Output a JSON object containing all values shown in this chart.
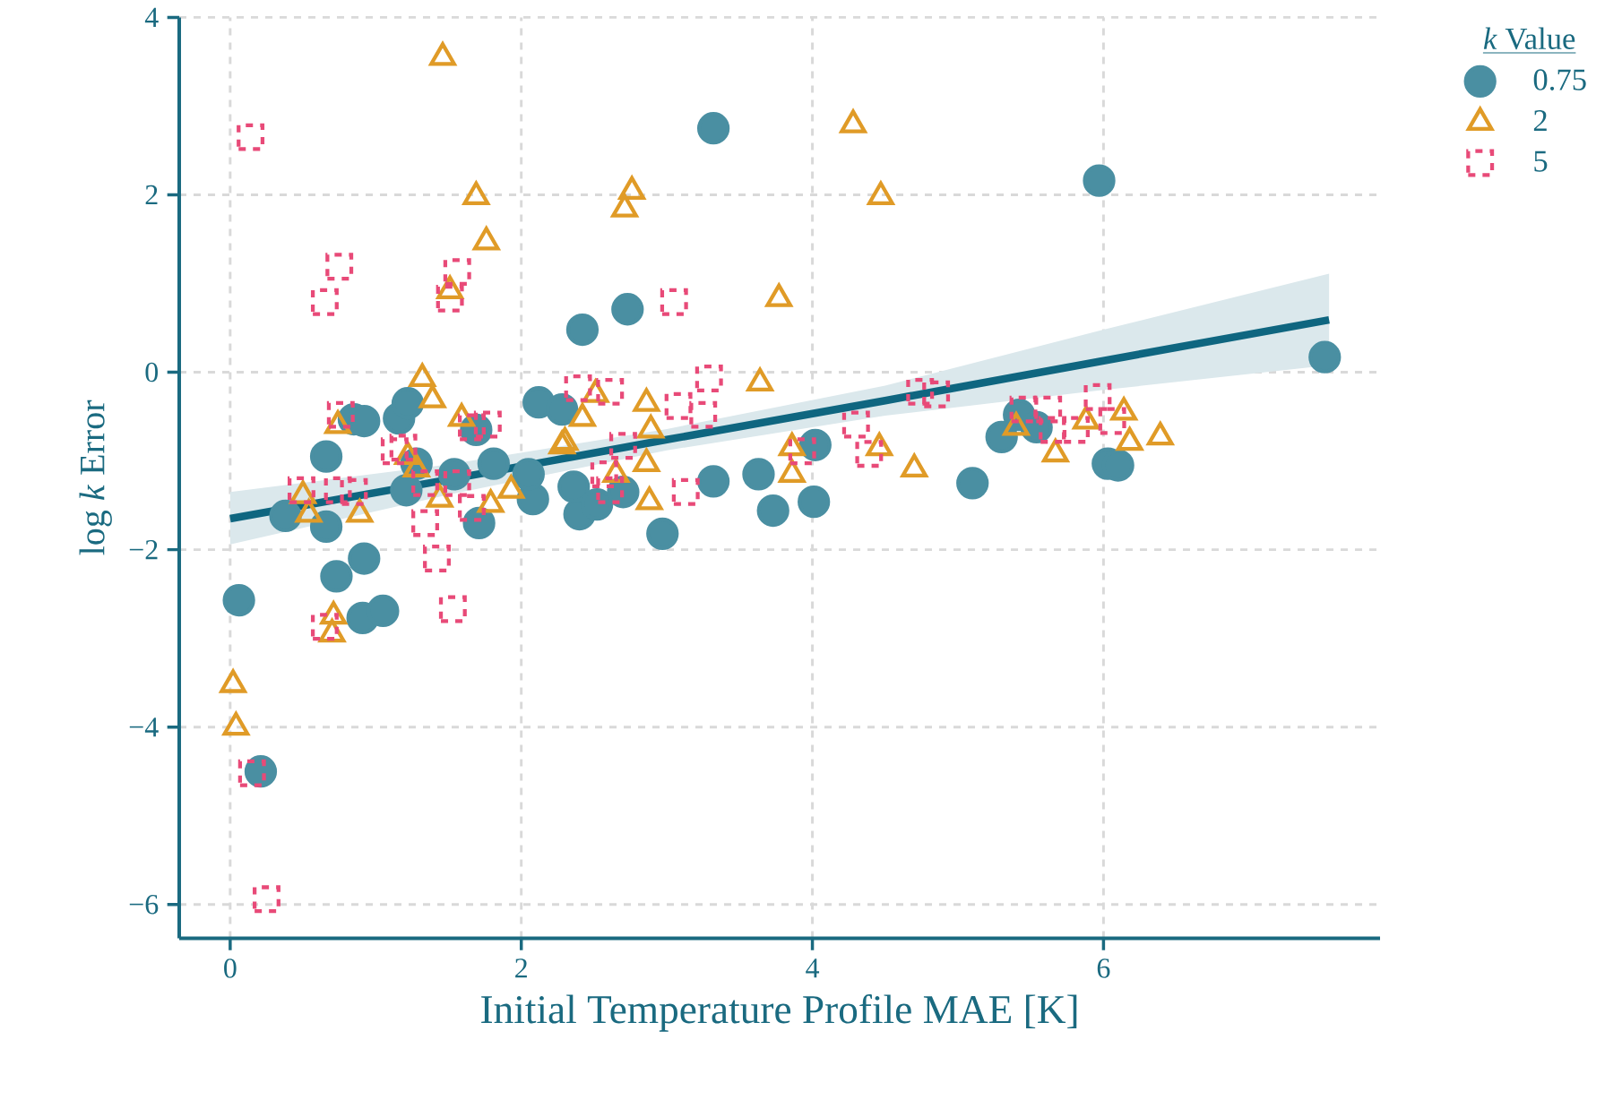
{
  "chart_data": {
    "type": "scatter",
    "xlabel": "Initial Temperature Profile MAE [K]",
    "ylabel": "log *k* Error",
    "legend_title": "*k* Value",
    "xlim": [
      -0.35,
      7.9
    ],
    "ylim": [
      -6.38,
      4
    ],
    "xticks": [
      0,
      2,
      4,
      6
    ],
    "yticks": [
      {
        "value": -6,
        "label": "−6"
      },
      {
        "value": -4,
        "label": "−4"
      },
      {
        "value": -2,
        "label": "−2"
      },
      0,
      2,
      4
    ],
    "grid": true,
    "legend": "right",
    "series": [
      {
        "name": "0.75",
        "marker": "circle",
        "color": "#4a8fa2",
        "x": [
          0.06,
          0.21,
          0.38,
          0.66,
          0.66,
          0.73,
          0.92,
          0.91,
          1.05,
          0.85,
          0.92,
          1.16,
          1.22,
          1.21,
          1.28,
          1.54,
          1.81,
          2.08,
          1.71,
          2.12,
          2.28,
          2.4,
          2.36,
          2.52,
          2.7,
          2.42,
          2.73,
          3.32,
          2.97,
          3.32,
          3.63,
          3.73,
          4.01,
          4.02,
          5.1,
          5.97,
          7.52,
          5.42,
          5.3,
          5.54,
          6.03,
          6.1,
          1.69,
          2.05
        ],
        "values": [
          -2.57,
          -4.5,
          -1.62,
          -1.74,
          -0.95,
          -2.3,
          -2.1,
          -2.77,
          -2.69,
          -0.53,
          -0.55,
          -0.52,
          -0.35,
          -1.33,
          -1.03,
          -1.15,
          -1.03,
          -1.43,
          -1.7,
          -0.34,
          -0.42,
          -1.6,
          -1.29,
          -1.49,
          -1.35,
          0.48,
          0.71,
          2.75,
          -1.82,
          -1.23,
          -1.15,
          -1.56,
          -1.46,
          -0.82,
          -1.25,
          2.16,
          0.17,
          -0.48,
          -0.73,
          -0.62,
          -1.03,
          -1.05,
          -0.65,
          -1.15
        ]
      },
      {
        "name": "2",
        "marker": "triangle",
        "color": "#e09b27",
        "x": [
          1.46,
          1.69,
          1.76,
          1.51,
          1.32,
          1.39,
          0.74,
          0.02,
          0.04,
          0.71,
          0.7,
          0.5,
          0.54,
          0.89,
          1.59,
          1.22,
          1.28,
          1.44,
          1.79,
          1.93,
          2.3,
          2.76,
          2.71,
          4.28,
          4.47,
          3.77,
          3.64,
          2.51,
          2.42,
          2.28,
          2.86,
          2.89,
          2.86,
          2.88,
          2.65,
          3.86,
          3.86,
          4.46,
          4.7,
          5.4,
          5.67,
          5.88,
          6.14,
          6.18,
          6.39
        ],
        "values": [
          3.55,
          1.98,
          1.47,
          0.92,
          -0.07,
          -0.31,
          -0.6,
          -3.52,
          -4.0,
          -2.75,
          -2.95,
          -1.39,
          -1.6,
          -1.6,
          -0.52,
          -0.95,
          -1.09,
          -1.43,
          -1.49,
          -1.33,
          -0.79,
          2.04,
          1.84,
          2.79,
          1.98,
          0.83,
          -0.12,
          -0.25,
          -0.52,
          -0.83,
          -0.35,
          -0.65,
          -1.03,
          -1.46,
          -1.15,
          -0.85,
          -1.15,
          -0.85,
          -1.09,
          -0.62,
          -0.92,
          -0.55,
          -0.45,
          -0.79,
          -0.73
        ]
      },
      {
        "name": "5",
        "marker": "square",
        "line_style": "dashed",
        "color": "#e84a78",
        "x": [
          0.14,
          0.75,
          0.65,
          1.56,
          1.51,
          0.76,
          0.25,
          0.15,
          0.65,
          1.53,
          1.42,
          1.34,
          1.19,
          1.13,
          0.49,
          0.74,
          0.85,
          1.34,
          1.56,
          1.66,
          1.77,
          1.66,
          2.39,
          3.05,
          2.61,
          3.29,
          3.08,
          3.25,
          2.7,
          2.57,
          2.61,
          3.13,
          3.93,
          4.3,
          4.39,
          4.74,
          4.85,
          5.45,
          5.62,
          5.65,
          5.81,
          5.96,
          6.06
        ],
        "values": [
          2.65,
          1.19,
          0.79,
          1.13,
          0.83,
          -0.48,
          -5.94,
          -4.52,
          -2.87,
          -2.67,
          -2.1,
          -1.7,
          -0.85,
          -0.89,
          -1.33,
          -1.33,
          -1.35,
          -1.25,
          -1.25,
          -1.53,
          -0.59,
          -0.62,
          -0.18,
          0.79,
          -0.22,
          -0.07,
          -0.38,
          -0.48,
          -0.83,
          -1.15,
          -1.33,
          -1.35,
          -0.89,
          -0.59,
          -0.92,
          -0.22,
          -0.25,
          -0.42,
          -0.42,
          -0.65,
          -0.65,
          -0.28,
          -0.55
        ]
      },
      {
        "type": "line",
        "color": "#0f6680",
        "x": [
          0,
          1.5,
          3,
          4.5,
          6,
          7.55
        ],
        "values": [
          -1.65,
          -1.21,
          -0.76,
          -0.32,
          0.13,
          0.59
        ],
        "lower": [
          -1.94,
          -1.38,
          -0.88,
          -0.49,
          -0.2,
          0.08
        ],
        "upper": [
          -1.35,
          -1.04,
          -0.64,
          -0.15,
          0.48,
          1.11
        ]
      }
    ]
  }
}
